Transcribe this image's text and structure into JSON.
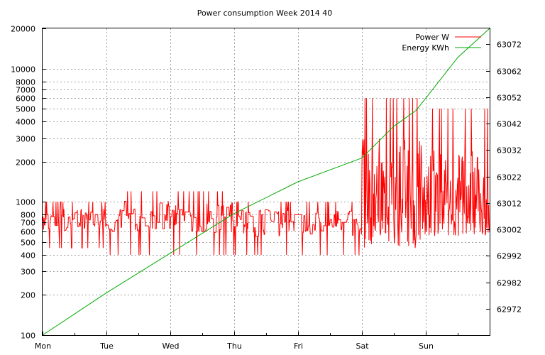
{
  "chart_data": {
    "type": "line",
    "title": "Power consumption Week 2014 40",
    "grid": true,
    "legend_position": "top-right",
    "x_categories": [
      "Mon",
      "Tue",
      "Wed",
      "Thu",
      "Fri",
      "Sat",
      "Sun"
    ],
    "y_left": {
      "scale": "log",
      "range": [
        100,
        20000
      ],
      "ticks": [
        100,
        200,
        300,
        400,
        500,
        600,
        700,
        800,
        1000,
        2000,
        3000,
        4000,
        5000,
        6000,
        7000,
        8000,
        10000,
        20000
      ]
    },
    "y_right": {
      "scale": "linear",
      "range": [
        62962,
        63078
      ],
      "ticks": [
        62972,
        62982,
        62992,
        63002,
        63012,
        63022,
        63032,
        63042,
        63052,
        63062,
        63072
      ]
    },
    "series": [
      {
        "name": "Power W",
        "axis": "left",
        "color": "#ff0000",
        "band_by_day": [
          {
            "day": "Mon",
            "low": 450,
            "high": 1000
          },
          {
            "day": "Tue",
            "low": 400,
            "high": 1200
          },
          {
            "day": "Wed",
            "low": 400,
            "high": 1200
          },
          {
            "day": "Thu",
            "low": 400,
            "high": 1000
          },
          {
            "day": "Fri",
            "low": 400,
            "high": 1000
          },
          {
            "day": "Sat",
            "low": 450,
            "high": 6000
          },
          {
            "day": "Sun",
            "low": 550,
            "high": 5000
          }
        ]
      },
      {
        "name": "Energy KWh",
        "axis": "right",
        "color": "#00aa00",
        "x": [
          0,
          1,
          2,
          3,
          4,
          5,
          5.5,
          5.85,
          6.5,
          7
        ],
        "y": [
          62962,
          62978,
          62993,
          63008,
          63020,
          63029,
          63041,
          63047,
          63067,
          63078
        ]
      }
    ]
  }
}
